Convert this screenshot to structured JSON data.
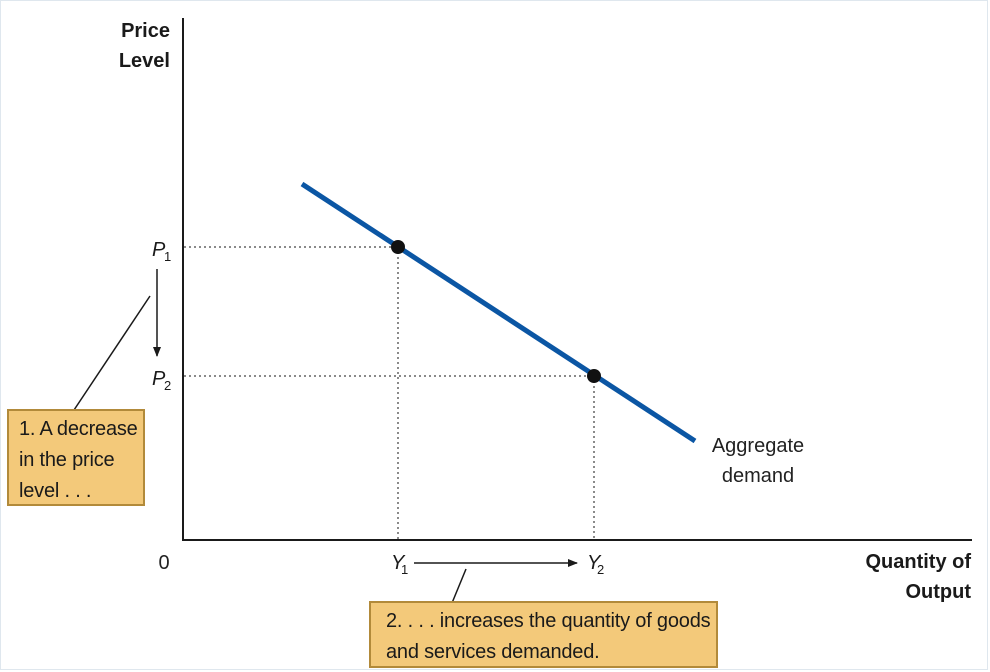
{
  "axes": {
    "y_title_line1": "Price",
    "y_title_line2": "Level",
    "x_title_line1": "Quantity of",
    "x_title_line2": "Output",
    "origin": "0"
  },
  "ticks": {
    "p1": {
      "var": "P",
      "sub": "1"
    },
    "p2": {
      "var": "P",
      "sub": "2"
    },
    "y1": {
      "var": "Y",
      "sub": "1"
    },
    "y2": {
      "var": "Y",
      "sub": "2"
    }
  },
  "curve": {
    "label_line1": "Aggregate",
    "label_line2": "demand",
    "color": "#0b56a4"
  },
  "points": [
    {
      "name": "point-a",
      "price": "P1",
      "quantity": "Y1"
    },
    {
      "name": "point-b",
      "price": "P2",
      "quantity": "Y2"
    }
  ],
  "annotations": {
    "note1": {
      "line1": "1. A decrease",
      "line2": "in the price",
      "line3": "level . . ."
    },
    "note2": {
      "line1": "2. . . . increases the quantity of goods",
      "line2": "and services demanded."
    },
    "box_color": "#f3c97a",
    "box_border_color": "#b28a3a"
  }
}
